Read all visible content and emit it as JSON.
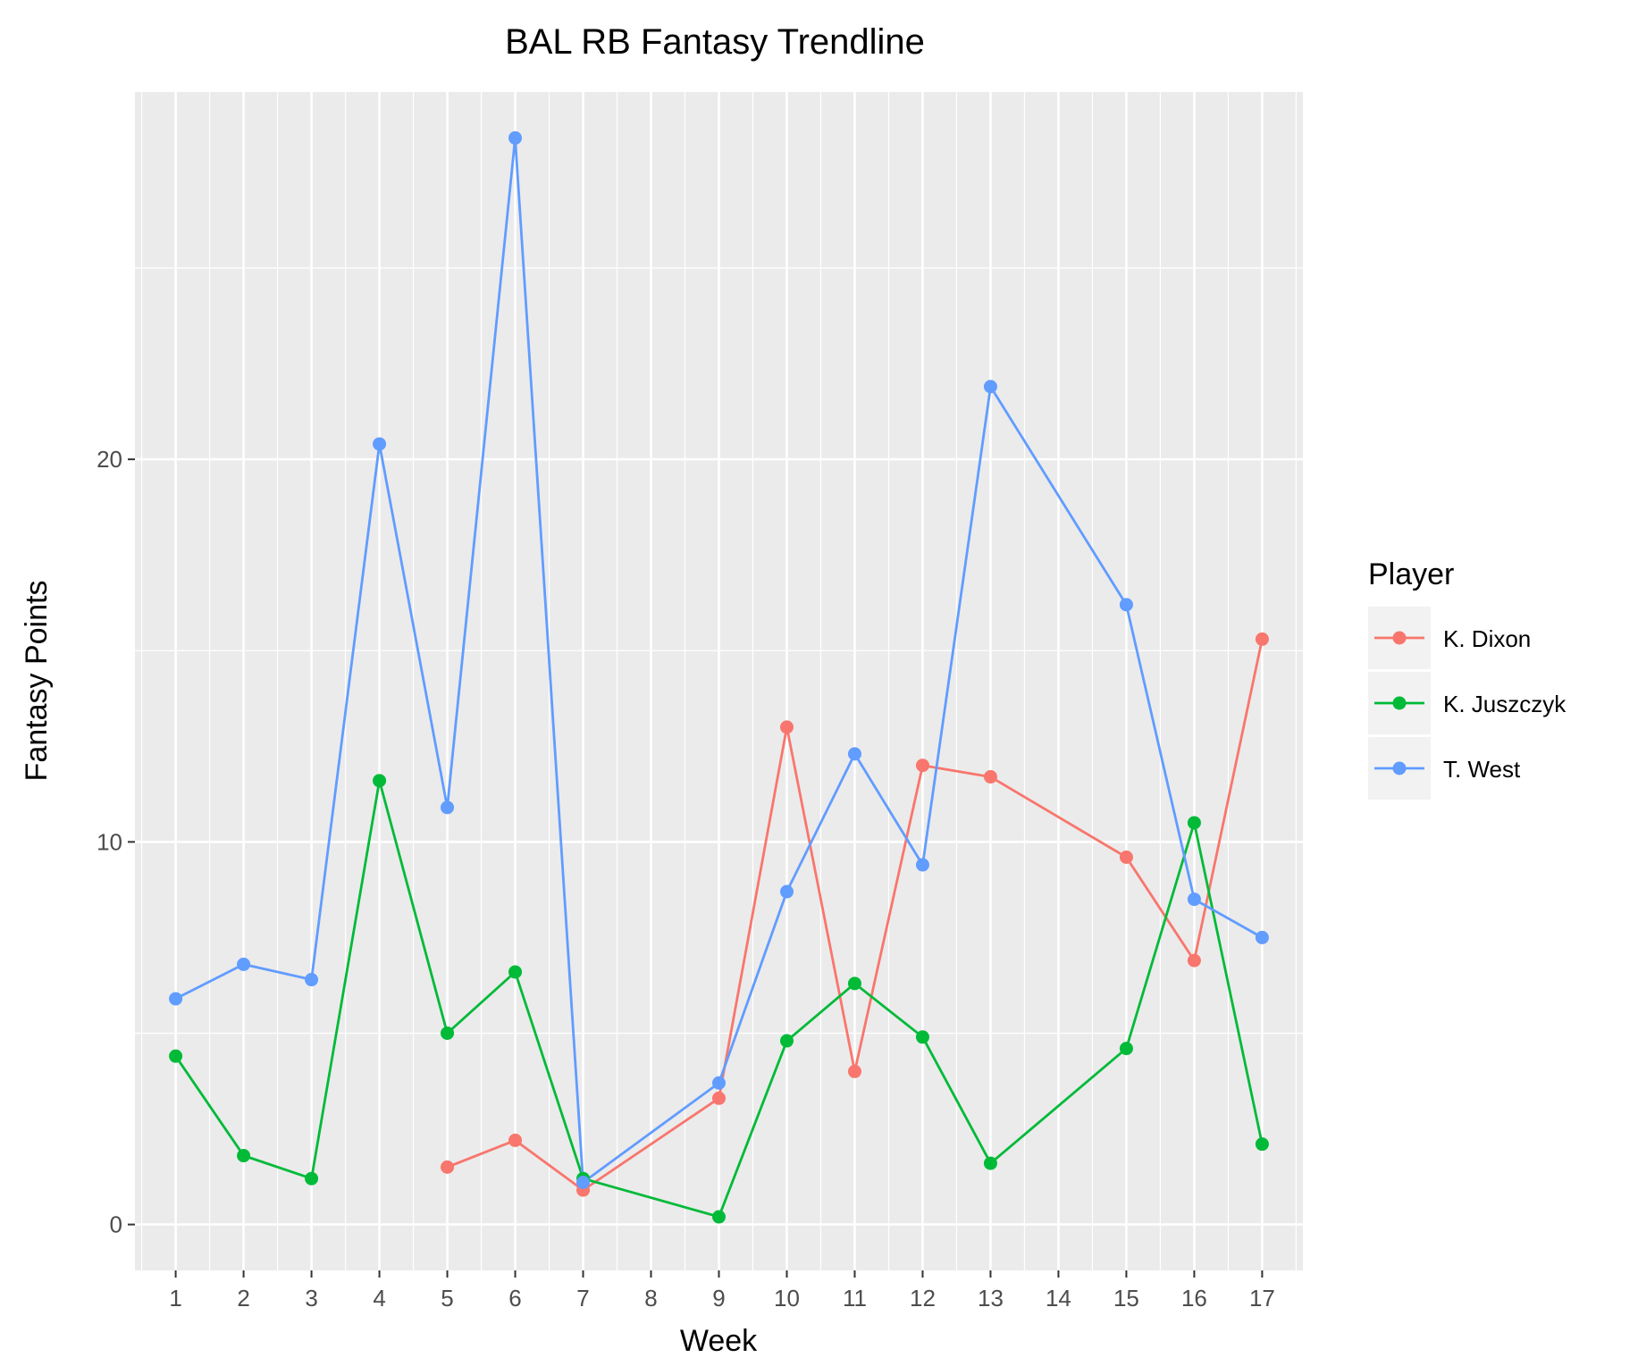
{
  "chart_data": {
    "type": "line",
    "title": "BAL RB Fantasy Trendline",
    "xlabel": "Week",
    "ylabel": "Fantasy Points",
    "x_categories": [
      "1",
      "2",
      "3",
      "4",
      "5",
      "6",
      "7",
      "8",
      "9",
      "10",
      "11",
      "12",
      "13",
      "14",
      "15",
      "16",
      "17"
    ],
    "y_ticks": [
      0,
      10,
      20
    ],
    "ylim": [
      -1.2,
      29.6
    ],
    "grid": true,
    "legend": {
      "title": "Player",
      "position": "right"
    },
    "series": [
      {
        "name": "K. Dixon",
        "color": "#F8766D",
        "points": [
          {
            "x": "5",
            "y": 1.5
          },
          {
            "x": "6",
            "y": 2.2
          },
          {
            "x": "7",
            "y": 0.9
          },
          {
            "x": "9",
            "y": 3.3
          },
          {
            "x": "10",
            "y": 13.0
          },
          {
            "x": "11",
            "y": 4.0
          },
          {
            "x": "12",
            "y": 12.0
          },
          {
            "x": "13",
            "y": 11.7
          },
          {
            "x": "15",
            "y": 9.6
          },
          {
            "x": "16",
            "y": 6.9
          },
          {
            "x": "17",
            "y": 15.3
          }
        ]
      },
      {
        "name": "K. Juszczyk",
        "color": "#00BA38",
        "points": [
          {
            "x": "1",
            "y": 4.4
          },
          {
            "x": "2",
            "y": 1.8
          },
          {
            "x": "3",
            "y": 1.2
          },
          {
            "x": "4",
            "y": 11.6
          },
          {
            "x": "5",
            "y": 5.0
          },
          {
            "x": "6",
            "y": 6.6
          },
          {
            "x": "7",
            "y": 1.2
          },
          {
            "x": "9",
            "y": 0.2
          },
          {
            "x": "10",
            "y": 4.8
          },
          {
            "x": "11",
            "y": 6.3
          },
          {
            "x": "12",
            "y": 4.9
          },
          {
            "x": "13",
            "y": 1.6
          },
          {
            "x": "15",
            "y": 4.6
          },
          {
            "x": "16",
            "y": 10.5
          },
          {
            "x": "17",
            "y": 2.1
          }
        ]
      },
      {
        "name": "T. West",
        "color": "#619CFF",
        "points": [
          {
            "x": "1",
            "y": 5.9
          },
          {
            "x": "2",
            "y": 6.8
          },
          {
            "x": "3",
            "y": 6.4
          },
          {
            "x": "4",
            "y": 20.4
          },
          {
            "x": "5",
            "y": 10.9
          },
          {
            "x": "6",
            "y": 28.4
          },
          {
            "x": "7",
            "y": 1.1
          },
          {
            "x": "9",
            "y": 3.7
          },
          {
            "x": "10",
            "y": 8.7
          },
          {
            "x": "11",
            "y": 12.3
          },
          {
            "x": "12",
            "y": 9.4
          },
          {
            "x": "13",
            "y": 21.9
          },
          {
            "x": "15",
            "y": 16.2
          },
          {
            "x": "16",
            "y": 8.5
          },
          {
            "x": "17",
            "y": 7.5
          }
        ]
      }
    ]
  }
}
